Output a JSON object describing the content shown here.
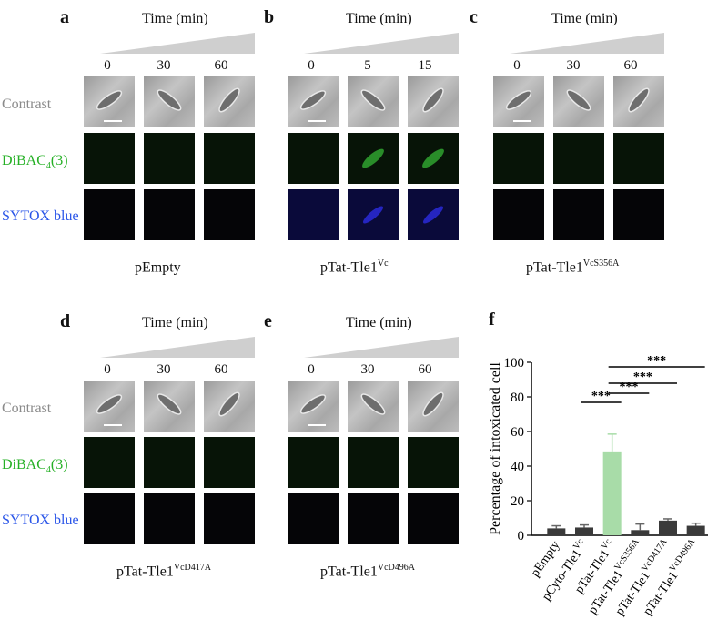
{
  "row_labels": {
    "contrast": "Contrast",
    "dibac_main": "DiBAC",
    "dibac_sub": "4",
    "dibac_tail": "(3)",
    "sytox": "SYTOX blue",
    "contrast_color": "#8a8a8a",
    "dibac_color": "#25b025",
    "sytox_color": "#2a55e8"
  },
  "time_title": "Time (min)",
  "panels": [
    {
      "letter": "a",
      "ticks": [
        "0",
        "30",
        "60"
      ],
      "cond_main": "pEmpty",
      "cond_sup": ""
    },
    {
      "letter": "b",
      "ticks": [
        "0",
        "5",
        "15"
      ],
      "cond_main": "pTat-Tle1",
      "cond_sup": "Vc"
    },
    {
      "letter": "c",
      "ticks": [
        "0",
        "30",
        "60"
      ],
      "cond_main": "pTat-Tle1",
      "cond_sup": "VcS356A"
    },
    {
      "letter": "d",
      "ticks": [
        "0",
        "30",
        "60"
      ],
      "cond_main": "pTat-Tle1",
      "cond_sup": "VcD417A"
    },
    {
      "letter": "e",
      "ticks": [
        "0",
        "30",
        "60"
      ],
      "cond_main": "pTat-Tle1",
      "cond_sup": "VcD496A"
    }
  ],
  "chart_panel_letter": "f",
  "chart_data": {
    "type": "bar",
    "ylabel": "Percentage of intoxicated cell",
    "ylim": [
      0,
      100
    ],
    "yticks": [
      "0",
      "20",
      "40",
      "60",
      "80",
      "100"
    ],
    "categories": [
      {
        "main": "pEmpty",
        "sup": ""
      },
      {
        "main": "pCyto-Tle1",
        "sup": "Vc"
      },
      {
        "main": "pTat-Tle1",
        "sup": "Vc"
      },
      {
        "main": "pTat-Tle1",
        "sup": "VcS356A"
      },
      {
        "main": "pTat-Tle1",
        "sup": "VcD417A"
      },
      {
        "main": "pTat-Tle1",
        "sup": "VcD496A"
      }
    ],
    "values": [
      4,
      4.5,
      48.5,
      3,
      8.5,
      5.5
    ],
    "errors": [
      1.5,
      1.5,
      10,
      3.5,
      1,
      1.5
    ],
    "colors": [
      "#3a3a3a",
      "#3a3a3a",
      "#a8dca8",
      "#3a3a3a",
      "#3a3a3a",
      "#3a3a3a"
    ],
    "significance": "***",
    "comparisons": [
      [
        1,
        2
      ],
      [
        2,
        3
      ],
      [
        2,
        4
      ],
      [
        2,
        5
      ]
    ]
  }
}
